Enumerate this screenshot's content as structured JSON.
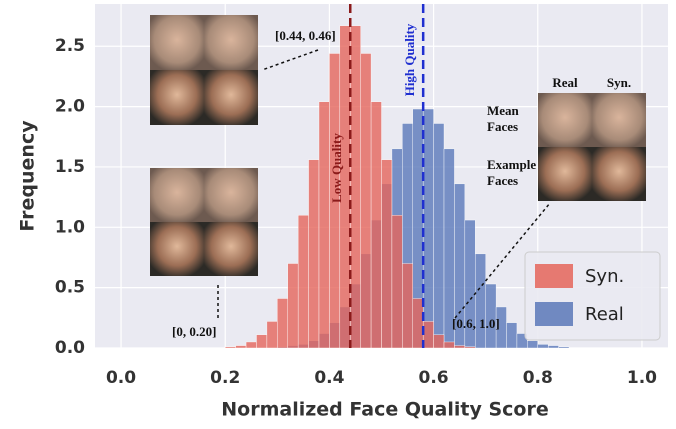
{
  "chart_data": {
    "type": "histogram",
    "xlabel": "Normalized Face Quality Score",
    "ylabel": "Frequency",
    "bins": [
      0.16,
      0.18,
      0.2,
      0.22,
      0.24,
      0.26,
      0.28,
      0.3,
      0.32,
      0.34,
      0.36,
      0.38,
      0.4,
      0.42,
      0.44,
      0.46,
      0.48,
      0.5,
      0.52,
      0.54,
      0.56,
      0.58,
      0.6,
      0.62,
      0.64,
      0.66,
      0.68,
      0.7,
      0.72,
      0.74,
      0.76,
      0.78,
      0.8,
      0.82,
      0.84,
      0.86,
      0.88,
      0.9,
      0.92
    ],
    "series": [
      {
        "name": "Real",
        "color": "#5a78b9",
        "values": [
          0,
          0,
          0,
          0,
          0,
          0,
          0,
          0.01,
          0.02,
          0.03,
          0.06,
          0.12,
          0.21,
          0.34,
          0.53,
          0.78,
          1.06,
          1.36,
          1.65,
          1.86,
          1.98,
          1.98,
          1.86,
          1.65,
          1.36,
          1.06,
          0.78,
          0.53,
          0.34,
          0.21,
          0.12,
          0.06,
          0.03,
          0.02,
          0.01,
          0,
          0,
          0
        ]
      },
      {
        "name": "Syn.",
        "color": "#e5655b",
        "values": [
          0,
          0,
          0.01,
          0.02,
          0.05,
          0.11,
          0.22,
          0.41,
          0.7,
          1.1,
          1.56,
          2.04,
          2.44,
          2.67,
          2.67,
          2.44,
          2.04,
          1.56,
          1.1,
          0.7,
          0.41,
          0.22,
          0.11,
          0.05,
          0.02,
          0.01,
          0,
          0,
          0,
          0,
          0,
          0,
          0,
          0,
          0,
          0,
          0,
          0
        ]
      }
    ],
    "legend_order": [
      1,
      0
    ],
    "xlim": [
      -0.05,
      1.05
    ],
    "ylim": [
      0,
      2.85
    ],
    "xticks": [
      {
        "value": 0,
        "label": "0.0"
      },
      {
        "value": 0.2,
        "label": "0.2"
      },
      {
        "value": 0.4,
        "label": "0.4"
      },
      {
        "value": 0.6,
        "label": "0.6"
      },
      {
        "value": 0.8,
        "label": "0.8"
      },
      {
        "value": 1,
        "label": "1.0"
      }
    ],
    "yticks": [
      {
        "value": 0,
        "label": "0.0"
      },
      {
        "value": 0.5,
        "label": "0.5"
      },
      {
        "value": 1,
        "label": "1.0"
      },
      {
        "value": 1.5,
        "label": "1.5"
      },
      {
        "value": 2,
        "label": "2.0"
      },
      {
        "value": 2.5,
        "label": "2.5"
      }
    ],
    "grid": true,
    "legend_position": "lower right",
    "vlines": [
      {
        "x": 0.44,
        "label": "Low Quality",
        "color": "#8b1a1a"
      },
      {
        "x": 0.58,
        "label": "High Quality",
        "color": "#1f2fd0"
      }
    ],
    "annotations": {
      "top_range": "[0.44, 0.46]",
      "low_range": "[0, 0.20]",
      "high_range": "[0.6, 1.0]",
      "col_real": "Real",
      "col_syn": "Syn.",
      "mean_faces": [
        "Mean",
        "Faces"
      ],
      "example_faces": [
        "Example",
        "Faces"
      ]
    }
  }
}
